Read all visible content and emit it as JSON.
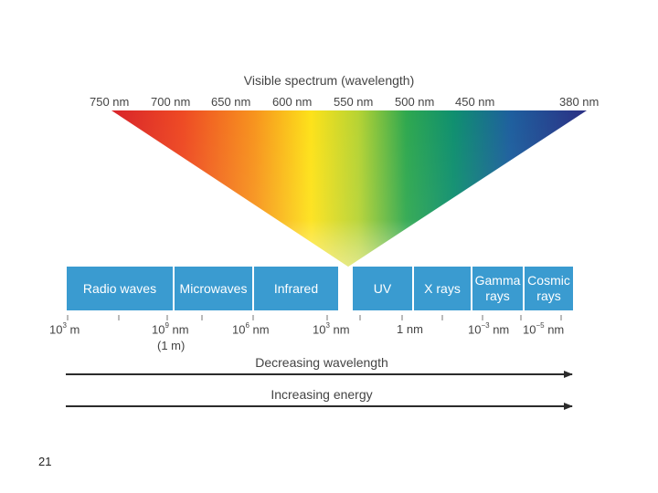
{
  "visible_spectrum": {
    "title": "Visible spectrum (wavelength)",
    "wavelengths": [
      "750 nm",
      "700 nm",
      "650 nm",
      "600 nm",
      "550 nm",
      "500 nm",
      "450 nm",
      "380 nm"
    ]
  },
  "bands": [
    {
      "label": "Radio waves"
    },
    {
      "label": "Microwaves"
    },
    {
      "label": "Infrared"
    },
    {
      "label": "UV"
    },
    {
      "label": "X rays"
    },
    {
      "label": "Gamma rays"
    },
    {
      "label": "Cosmic rays"
    }
  ],
  "scale": {
    "ticks": [
      {
        "base": "10",
        "exp": "3",
        "unit": " m"
      },
      {
        "base": "10",
        "exp": "9",
        "unit": " nm"
      },
      {
        "base": "10",
        "exp": "6",
        "unit": " nm"
      },
      {
        "base": "10",
        "exp": "3",
        "unit": " nm"
      },
      {
        "base": "",
        "exp": "",
        "unit": "1 nm"
      },
      {
        "base": "10",
        "exp": "−3",
        "unit": " nm"
      },
      {
        "base": "10",
        "exp": "−5",
        "unit": " nm"
      }
    ],
    "sub_note": "(1 m)"
  },
  "arrows": {
    "wavelength_label": "Decreasing wavelength",
    "energy_label": "Increasing energy"
  },
  "slide_number": "21",
  "colors": {
    "band_fill": "#3a9bd0",
    "arrow": "#2b2b2b",
    "spectrum": [
      "#d8232a",
      "#f36f21",
      "#fdd71a",
      "#9cc83b",
      "#1aa35a",
      "#108a7e",
      "#1d5a9c",
      "#2b3183"
    ]
  }
}
